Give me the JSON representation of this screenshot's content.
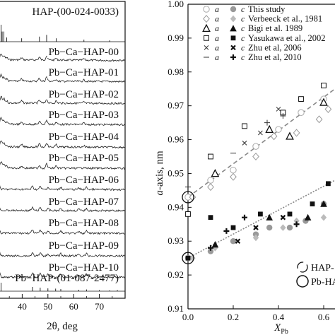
{
  "chart_data": [
    {
      "type": "line",
      "panel": "left",
      "xlabel": "2θ, deg",
      "xticks": [
        "0",
        "40",
        "50",
        "60",
        "70"
      ],
      "pattern_labels": [
        "HAP-(00-024-0033)",
        "Pb−Ca−HAP-00",
        "Pb−Ca−HAP-01",
        "Pb−Ca−HAP-02",
        "Pb−Ca−HAP-03",
        "Pb−Ca−HAP-04",
        "Pb−Ca−HAP-05",
        "Pb−Ca−HAP-06",
        "Pb−Ca−HAP-07",
        "Pb−Ca−HAP-08",
        "Pb−Ca−HAP-09",
        "Pb−Ca−HAP-10",
        "Pb−HAP-(01-087-2477)"
      ],
      "reference_peaks": {
        "HAP": [
          [
            26,
            40
          ],
          [
            28.9,
            30
          ],
          [
            31.8,
            100
          ],
          [
            32.2,
            60
          ],
          [
            32.9,
            60
          ],
          [
            34,
            25
          ],
          [
            39.8,
            20
          ],
          [
            46.7,
            30
          ],
          [
            49.5,
            40
          ],
          [
            53.2,
            20
          ],
          [
            64,
            12
          ],
          [
            74,
            8
          ]
        ],
        "PbHAP": [
          [
            21,
            30
          ],
          [
            27.5,
            45
          ],
          [
            30.2,
            100
          ],
          [
            31,
            70
          ],
          [
            31.8,
            60
          ],
          [
            44,
            30
          ],
          [
            47,
            25
          ],
          [
            50,
            20
          ],
          [
            53,
            18
          ],
          [
            55,
            15
          ],
          [
            62,
            10
          ],
          [
            65,
            12
          ],
          [
            70,
            8
          ],
          [
            74,
            6
          ],
          [
            77,
            8
          ]
        ]
      }
    },
    {
      "type": "scatter",
      "panel": "right",
      "ylabel_italic": "a",
      "ylabel_rest": "-axis, nm",
      "xlabel_main": "X",
      "xlabel_sub": "Pb",
      "xlim": [
        0,
        0.65
      ],
      "ylim": [
        0.91,
        1.0
      ],
      "xticks": [
        "0.0",
        "0.2",
        "0.4",
        "0.6"
      ],
      "yticks": [
        "0.91",
        "0.92",
        "0.93",
        "0.94",
        "0.95",
        "0.96",
        "0.97",
        "0.98",
        "0.99",
        "1.00"
      ],
      "legend": [
        {
          "a": "a",
          "c": "c",
          "label": "This study"
        },
        {
          "a": "a",
          "c": "c",
          "label": "Verbeeck et al., 1981"
        },
        {
          "a": "a",
          "c": "c",
          "label": "Bigi et al. 1989"
        },
        {
          "a": "a",
          "c": "c",
          "label": "Yasukawa et al., 2002"
        },
        {
          "a": "a",
          "c": "c",
          "label": "Zhu et al, 2006"
        },
        {
          "a": "a",
          "c": "c",
          "label": "Zhu et al, 2010"
        }
      ],
      "annotations": [
        "HAP-",
        "Pb-HA"
      ],
      "series": [
        {
          "marker": "open-circle",
          "points": [
            [
              0.0,
              0.943
            ],
            [
              0.1,
              0.948
            ],
            [
              0.2,
              0.951
            ],
            [
              0.3,
              0.958
            ],
            [
              0.4,
              0.963
            ],
            [
              0.5,
              0.968
            ],
            [
              0.6,
              0.972
            ]
          ]
        },
        {
          "marker": "open-diamond",
          "points": [
            [
              0.02,
              0.943
            ],
            [
              0.1,
              0.946
            ],
            [
              0.2,
              0.949
            ],
            [
              0.3,
              0.955
            ],
            [
              0.38,
              0.961
            ],
            [
              0.48,
              0.962
            ],
            [
              0.58,
              0.966
            ],
            [
              0.62,
              0.969
            ]
          ]
        },
        {
          "marker": "open-triangle",
          "points": [
            [
              0.12,
              0.95
            ],
            [
              0.36,
              0.963
            ],
            [
              0.45,
              0.961
            ],
            [
              0.6,
              0.971
            ]
          ]
        },
        {
          "marker": "open-square",
          "points": [
            [
              0.0,
              0.938
            ],
            [
              0.1,
              0.955
            ],
            [
              0.25,
              0.964
            ],
            [
              0.42,
              0.968
            ],
            [
              0.5,
              0.972
            ],
            [
              0.6,
              0.976
            ]
          ]
        },
        {
          "marker": "x",
          "points": [
            [
              0.25,
              0.959
            ],
            [
              0.32,
              0.962
            ],
            [
              0.4,
              0.969
            ]
          ]
        },
        {
          "marker": "dash",
          "points": [
            [
              0.0,
              0.946
            ],
            [
              0.2,
              0.956
            ]
          ]
        },
        {
          "marker": "filled-circle",
          "points": [
            [
              0.0,
              0.925
            ],
            [
              0.1,
              0.927
            ],
            [
              0.2,
              0.93
            ],
            [
              0.3,
              0.932
            ],
            [
              0.36,
              0.934
            ],
            [
              0.45,
              0.934
            ],
            [
              0.52,
              0.936
            ],
            [
              0.6,
              0.941
            ],
            [
              0.64,
              0.943
            ]
          ]
        },
        {
          "marker": "filled-diamond",
          "points": [
            [
              0.02,
              0.925
            ],
            [
              0.12,
              0.928
            ],
            [
              0.3,
              0.931
            ],
            [
              0.42,
              0.934
            ],
            [
              0.48,
              0.936
            ],
            [
              0.6,
              0.937
            ]
          ]
        },
        {
          "marker": "filled-triangle",
          "points": [
            [
              0.12,
              0.929
            ],
            [
              0.36,
              0.937
            ],
            [
              0.53,
              0.937
            ],
            [
              0.6,
              0.941
            ]
          ]
        },
        {
          "marker": "filled-square",
          "points": [
            [
              0.0,
              0.925
            ],
            [
              0.1,
              0.937
            ],
            [
              0.2,
              0.934
            ],
            [
              0.32,
              0.938
            ],
            [
              0.45,
              0.938
            ],
            [
              0.55,
              0.941
            ],
            [
              0.62,
              0.947
            ]
          ]
        },
        {
          "marker": "x-bold",
          "points": [
            [
              0.22,
              0.93
            ],
            [
              0.3,
              0.934
            ],
            [
              0.42,
              0.937
            ]
          ]
        },
        {
          "marker": "plus-bold",
          "points": [
            [
              0.1,
              0.928
            ],
            [
              0.17,
              0.933
            ],
            [
              0.25,
              0.937
            ],
            [
              0.48,
              0.935
            ]
          ]
        }
      ],
      "fit_lines": [
        {
          "style": "dashed",
          "color": "#888888",
          "from": [
            0.0,
            0.943
          ],
          "to": [
            0.65,
            0.975
          ]
        },
        {
          "style": "dotted",
          "color": "#888888",
          "from": [
            0.0,
            0.925
          ],
          "to": [
            0.65,
            0.948
          ]
        }
      ]
    }
  ]
}
